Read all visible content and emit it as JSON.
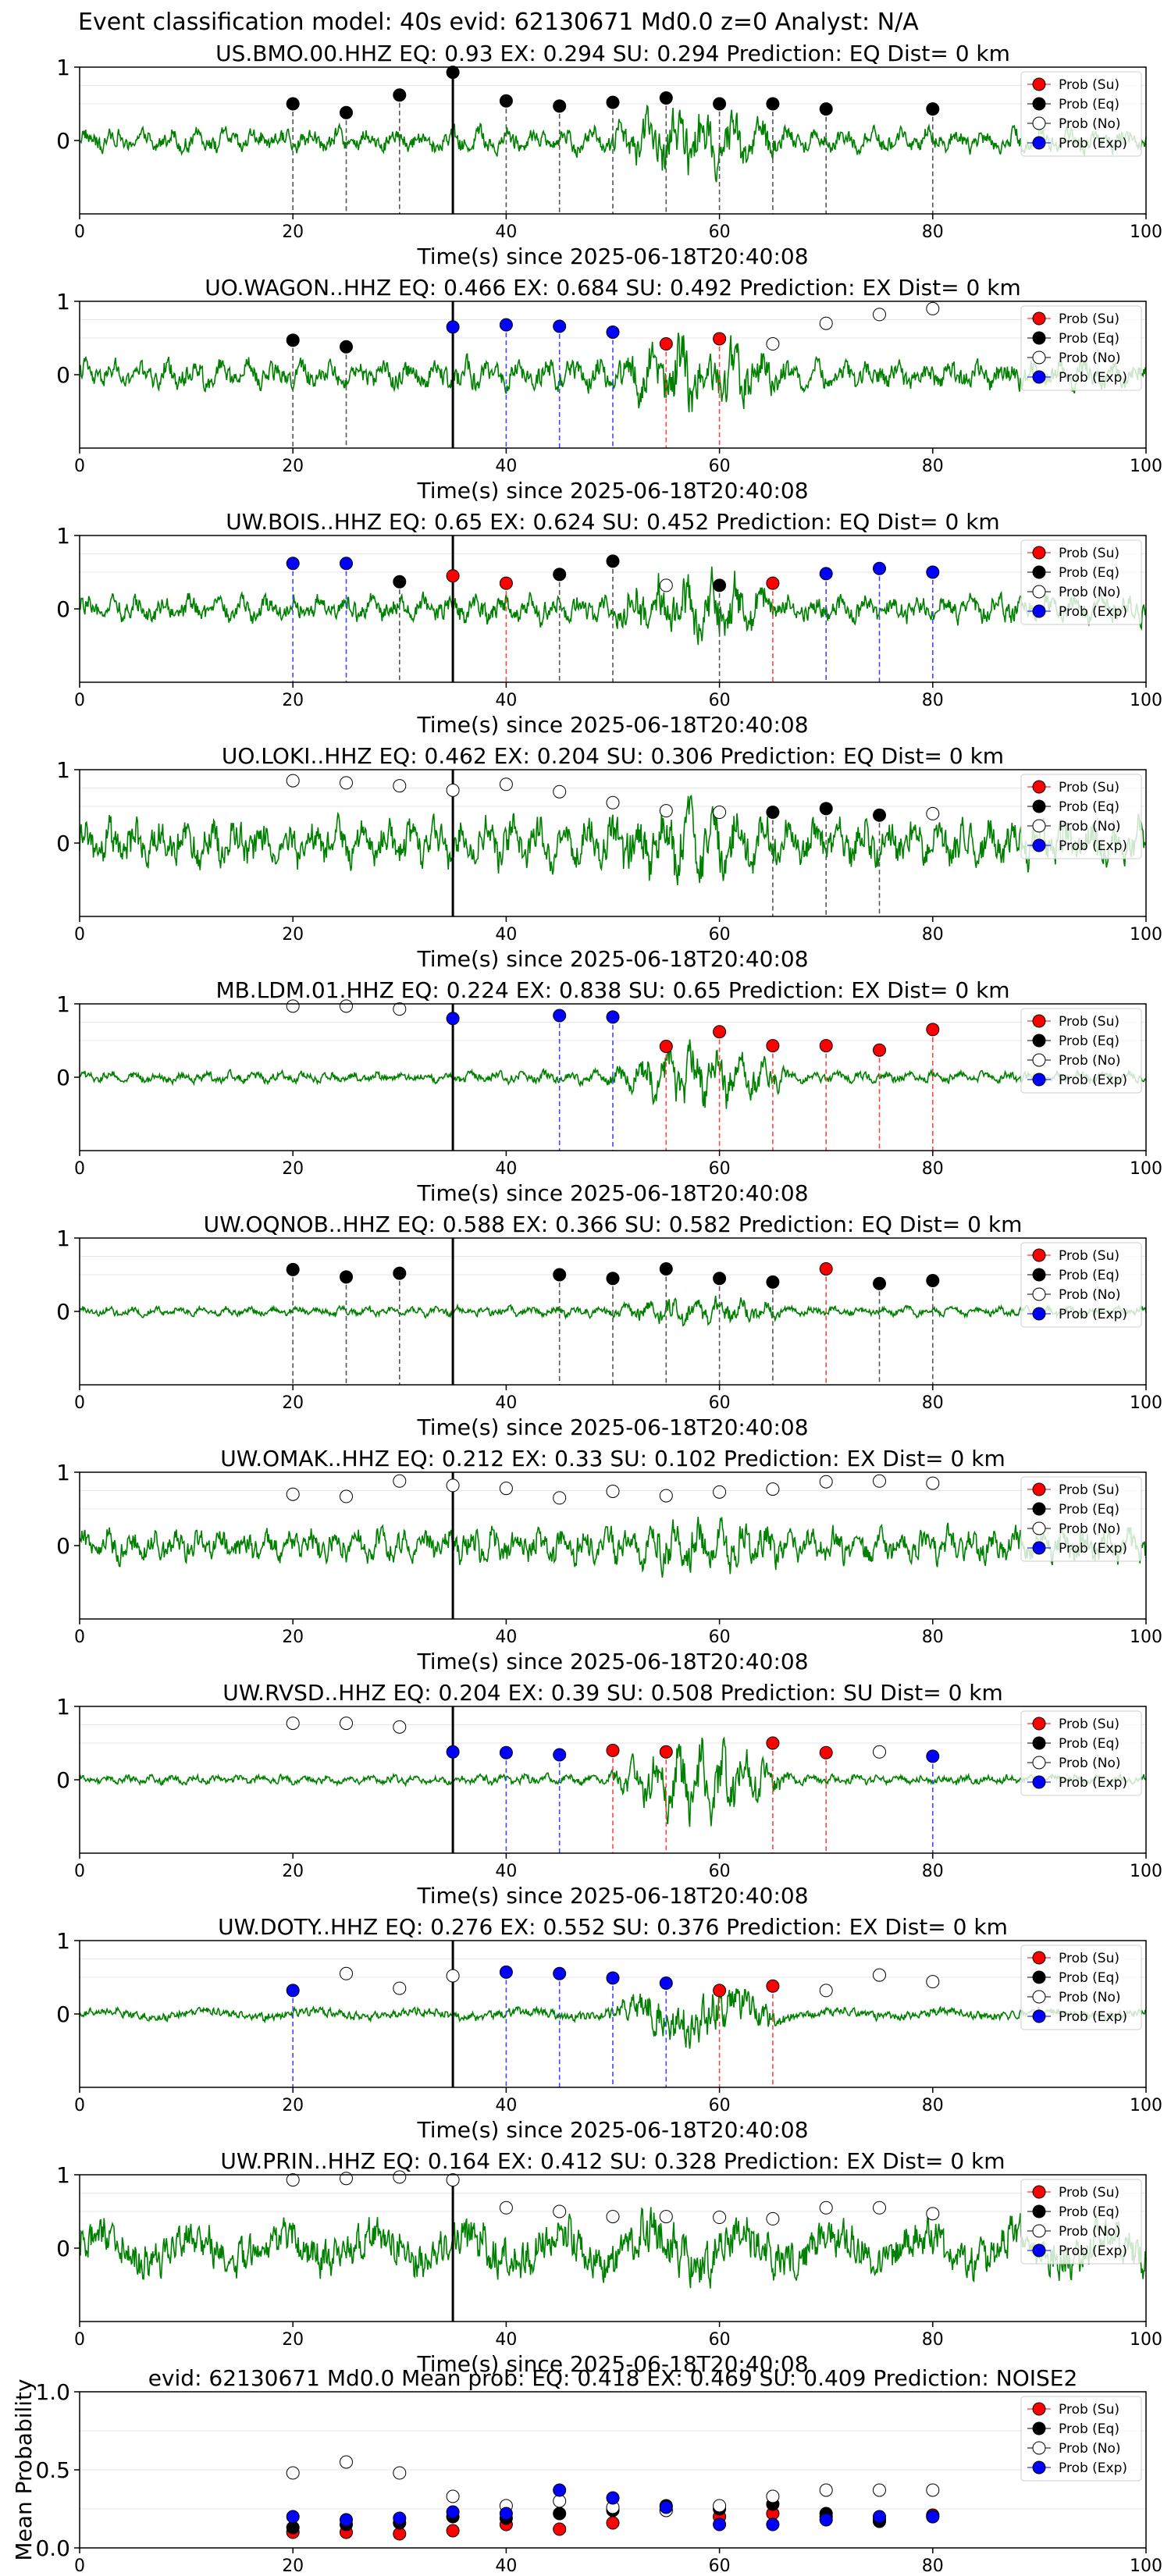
{
  "suptitle": "Event classification model: 40s evid: 62130671 Md0.0 z=0 Analyst: N/A",
  "legend_labels": [
    "Prob (Su)",
    "Prob (Eq)",
    "Prob (No)",
    "Prob (Exp)"
  ],
  "colors": {
    "su": "#ff0000",
    "eq": "#000000",
    "no": "#ffffff",
    "exp": "#0000ff",
    "waveform": "#008000"
  },
  "chart_data": [
    {
      "type": "line",
      "station": "US.BMO.00.HHZ",
      "title": "US.BMO.00.HHZ   EQ: 0.93  EX: 0.294  SU: 0.294   Prediction: EQ    Dist= 0 km",
      "xlabel": "Time(s) since 2025-06-18T20:40:08",
      "xlim": [
        0,
        100
      ],
      "ylim": [
        -1,
        1
      ],
      "xticks": [
        0,
        20,
        40,
        60,
        80,
        100
      ],
      "yticks": [
        0,
        1
      ],
      "onset": 35,
      "noise": 0.25,
      "burst": 0.45,
      "points": [
        {
          "x": 20,
          "y": 0.5,
          "cls": "eq"
        },
        {
          "x": 25,
          "y": 0.38,
          "cls": "eq"
        },
        {
          "x": 30,
          "y": 0.62,
          "cls": "eq"
        },
        {
          "x": 35,
          "y": 0.93,
          "cls": "eq"
        },
        {
          "x": 40,
          "y": 0.54,
          "cls": "eq"
        },
        {
          "x": 45,
          "y": 0.47,
          "cls": "eq"
        },
        {
          "x": 50,
          "y": 0.52,
          "cls": "eq"
        },
        {
          "x": 55,
          "y": 0.58,
          "cls": "eq"
        },
        {
          "x": 60,
          "y": 0.5,
          "cls": "eq"
        },
        {
          "x": 65,
          "y": 0.5,
          "cls": "eq"
        },
        {
          "x": 70,
          "y": 0.43,
          "cls": "eq"
        },
        {
          "x": 80,
          "y": 0.43,
          "cls": "eq"
        }
      ]
    },
    {
      "type": "line",
      "station": "UO.WAGON..HHZ",
      "title": "UO.WAGON..HHZ   EQ: 0.466  EX: 0.684  SU: 0.492   Prediction: EX    Dist= 0 km",
      "xlabel": "Time(s) since 2025-06-18T20:40:08",
      "xlim": [
        0,
        100
      ],
      "ylim": [
        -1,
        1
      ],
      "xticks": [
        0,
        20,
        40,
        60,
        80,
        100
      ],
      "yticks": [
        0,
        1
      ],
      "onset": 35,
      "noise": 0.3,
      "burst": 0.5,
      "points": [
        {
          "x": 20,
          "y": 0.47,
          "cls": "eq"
        },
        {
          "x": 25,
          "y": 0.38,
          "cls": "eq"
        },
        {
          "x": 35,
          "y": 0.65,
          "cls": "exp"
        },
        {
          "x": 40,
          "y": 0.68,
          "cls": "exp"
        },
        {
          "x": 45,
          "y": 0.66,
          "cls": "exp"
        },
        {
          "x": 50,
          "y": 0.58,
          "cls": "exp"
        },
        {
          "x": 55,
          "y": 0.42,
          "cls": "su"
        },
        {
          "x": 60,
          "y": 0.49,
          "cls": "su"
        },
        {
          "x": 65,
          "y": 0.42,
          "cls": "no"
        },
        {
          "x": 70,
          "y": 0.7,
          "cls": "no"
        },
        {
          "x": 75,
          "y": 0.82,
          "cls": "no"
        },
        {
          "x": 80,
          "y": 0.9,
          "cls": "no"
        }
      ]
    },
    {
      "type": "line",
      "station": "UW.BOIS..HHZ",
      "title": "UW.BOIS..HHZ   EQ: 0.65  EX: 0.624  SU: 0.452   Prediction: EQ    Dist= 0 km",
      "xlabel": "Time(s) since 2025-06-18T20:40:08",
      "xlim": [
        0,
        100
      ],
      "ylim": [
        -1,
        1
      ],
      "xticks": [
        0,
        20,
        40,
        60,
        80,
        100
      ],
      "yticks": [
        0,
        1
      ],
      "onset": 35,
      "noise": 0.28,
      "burst": 0.45,
      "points": [
        {
          "x": 20,
          "y": 0.62,
          "cls": "exp"
        },
        {
          "x": 25,
          "y": 0.62,
          "cls": "exp"
        },
        {
          "x": 30,
          "y": 0.37,
          "cls": "eq"
        },
        {
          "x": 35,
          "y": 0.45,
          "cls": "su"
        },
        {
          "x": 40,
          "y": 0.35,
          "cls": "su"
        },
        {
          "x": 45,
          "y": 0.47,
          "cls": "eq"
        },
        {
          "x": 50,
          "y": 0.65,
          "cls": "eq"
        },
        {
          "x": 55,
          "y": 0.32,
          "cls": "no"
        },
        {
          "x": 60,
          "y": 0.32,
          "cls": "eq"
        },
        {
          "x": 65,
          "y": 0.35,
          "cls": "su"
        },
        {
          "x": 70,
          "y": 0.48,
          "cls": "exp"
        },
        {
          "x": 75,
          "y": 0.55,
          "cls": "exp"
        },
        {
          "x": 80,
          "y": 0.5,
          "cls": "exp"
        }
      ]
    },
    {
      "type": "line",
      "station": "UO.LOKI..HHZ",
      "title": "UO.LOKI..HHZ   EQ: 0.462  EX: 0.204  SU: 0.306   Prediction: EQ    Dist= 0 km",
      "xlabel": "Time(s) since 2025-06-18T20:40:08",
      "xlim": [
        0,
        100
      ],
      "ylim": [
        -1,
        1
      ],
      "xticks": [
        0,
        20,
        40,
        60,
        80,
        100
      ],
      "yticks": [
        0,
        1
      ],
      "onset": 35,
      "noise": 0.5,
      "burst": 0.3,
      "points": [
        {
          "x": 20,
          "y": 0.85,
          "cls": "no"
        },
        {
          "x": 25,
          "y": 0.82,
          "cls": "no"
        },
        {
          "x": 30,
          "y": 0.78,
          "cls": "no"
        },
        {
          "x": 35,
          "y": 0.72,
          "cls": "no"
        },
        {
          "x": 40,
          "y": 0.8,
          "cls": "no"
        },
        {
          "x": 45,
          "y": 0.7,
          "cls": "no"
        },
        {
          "x": 50,
          "y": 0.55,
          "cls": "no"
        },
        {
          "x": 55,
          "y": 0.44,
          "cls": "no"
        },
        {
          "x": 60,
          "y": 0.42,
          "cls": "no"
        },
        {
          "x": 65,
          "y": 0.42,
          "cls": "eq"
        },
        {
          "x": 70,
          "y": 0.47,
          "cls": "eq"
        },
        {
          "x": 75,
          "y": 0.38,
          "cls": "eq"
        },
        {
          "x": 80,
          "y": 0.4,
          "cls": "no"
        }
      ]
    },
    {
      "type": "line",
      "station": "MB.LDM.01.HHZ",
      "title": "MB.LDM.01.HHZ   EQ: 0.224  EX: 0.838  SU: 0.65   Prediction: EX    Dist= 0 km",
      "xlabel": "Time(s) since 2025-06-18T20:40:08",
      "xlim": [
        0,
        100
      ],
      "ylim": [
        -1,
        1
      ],
      "xticks": [
        0,
        20,
        40,
        60,
        80,
        100
      ],
      "yticks": [
        0,
        1
      ],
      "onset": 35,
      "noise": 0.12,
      "burst": 0.55,
      "points": [
        {
          "x": 20,
          "y": 0.97,
          "cls": "no"
        },
        {
          "x": 25,
          "y": 0.97,
          "cls": "no"
        },
        {
          "x": 30,
          "y": 0.93,
          "cls": "no"
        },
        {
          "x": 35,
          "y": 0.8,
          "cls": "exp"
        },
        {
          "x": 45,
          "y": 0.84,
          "cls": "exp"
        },
        {
          "x": 50,
          "y": 0.82,
          "cls": "exp"
        },
        {
          "x": 55,
          "y": 0.42,
          "cls": "su"
        },
        {
          "x": 60,
          "y": 0.62,
          "cls": "su"
        },
        {
          "x": 65,
          "y": 0.43,
          "cls": "su"
        },
        {
          "x": 70,
          "y": 0.43,
          "cls": "su"
        },
        {
          "x": 75,
          "y": 0.37,
          "cls": "su"
        },
        {
          "x": 80,
          "y": 0.65,
          "cls": "su"
        }
      ]
    },
    {
      "type": "line",
      "station": "UW.OQNOB..HHZ",
      "title": "UW.OQNOB..HHZ   EQ: 0.588  EX: 0.366  SU: 0.582   Prediction: EQ    Dist= 0 km",
      "xlabel": "Time(s) since 2025-06-18T20:40:08",
      "xlim": [
        0,
        100
      ],
      "ylim": [
        -1,
        1
      ],
      "xticks": [
        0,
        20,
        40,
        60,
        80,
        100
      ],
      "yticks": [
        0,
        1
      ],
      "onset": 35,
      "noise": 0.1,
      "burst": 0.2,
      "points": [
        {
          "x": 20,
          "y": 0.57,
          "cls": "eq"
        },
        {
          "x": 25,
          "y": 0.47,
          "cls": "eq"
        },
        {
          "x": 30,
          "y": 0.52,
          "cls": "eq"
        },
        {
          "x": 45,
          "y": 0.5,
          "cls": "eq"
        },
        {
          "x": 50,
          "y": 0.45,
          "cls": "eq"
        },
        {
          "x": 55,
          "y": 0.58,
          "cls": "eq"
        },
        {
          "x": 60,
          "y": 0.45,
          "cls": "eq"
        },
        {
          "x": 65,
          "y": 0.4,
          "cls": "eq"
        },
        {
          "x": 70,
          "y": 0.58,
          "cls": "su"
        },
        {
          "x": 75,
          "y": 0.38,
          "cls": "eq"
        },
        {
          "x": 80,
          "y": 0.42,
          "cls": "eq"
        }
      ]
    },
    {
      "type": "line",
      "station": "UW.OMAK..HHZ",
      "title": "UW.OMAK..HHZ   EQ: 0.212  EX: 0.33  SU: 0.102   Prediction: EX    Dist= 0 km",
      "xlabel": "Time(s) since 2025-06-18T20:40:08",
      "xlim": [
        0,
        100
      ],
      "ylim": [
        -1,
        1
      ],
      "xticks": [
        0,
        20,
        40,
        60,
        80,
        100
      ],
      "yticks": [
        0,
        1
      ],
      "onset": 35,
      "noise": 0.35,
      "burst": 0.2,
      "points": [
        {
          "x": 20,
          "y": 0.7,
          "cls": "no"
        },
        {
          "x": 25,
          "y": 0.67,
          "cls": "no"
        },
        {
          "x": 30,
          "y": 0.88,
          "cls": "no"
        },
        {
          "x": 35,
          "y": 0.82,
          "cls": "no"
        },
        {
          "x": 40,
          "y": 0.78,
          "cls": "no"
        },
        {
          "x": 45,
          "y": 0.65,
          "cls": "no"
        },
        {
          "x": 50,
          "y": 0.74,
          "cls": "no"
        },
        {
          "x": 55,
          "y": 0.68,
          "cls": "no"
        },
        {
          "x": 60,
          "y": 0.73,
          "cls": "no"
        },
        {
          "x": 65,
          "y": 0.77,
          "cls": "no"
        },
        {
          "x": 70,
          "y": 0.87,
          "cls": "no"
        },
        {
          "x": 75,
          "y": 0.88,
          "cls": "no"
        },
        {
          "x": 80,
          "y": 0.85,
          "cls": "no"
        }
      ]
    },
    {
      "type": "line",
      "station": "UW.RVSD..HHZ",
      "title": "UW.RVSD..HHZ   EQ: 0.204  EX: 0.39  SU: 0.508   Prediction: SU    Dist= 0 km",
      "xlabel": "Time(s) since 2025-06-18T20:40:08",
      "xlim": [
        0,
        100
      ],
      "ylim": [
        -1,
        1
      ],
      "xticks": [
        0,
        20,
        40,
        60,
        80,
        100
      ],
      "yticks": [
        0,
        1
      ],
      "onset": 35,
      "noise": 0.1,
      "burst": 0.7,
      "points": [
        {
          "x": 20,
          "y": 0.77,
          "cls": "no"
        },
        {
          "x": 25,
          "y": 0.77,
          "cls": "no"
        },
        {
          "x": 30,
          "y": 0.72,
          "cls": "no"
        },
        {
          "x": 35,
          "y": 0.38,
          "cls": "exp"
        },
        {
          "x": 40,
          "y": 0.37,
          "cls": "exp"
        },
        {
          "x": 45,
          "y": 0.34,
          "cls": "exp"
        },
        {
          "x": 50,
          "y": 0.4,
          "cls": "su"
        },
        {
          "x": 55,
          "y": 0.38,
          "cls": "su"
        },
        {
          "x": 65,
          "y": 0.5,
          "cls": "su"
        },
        {
          "x": 70,
          "y": 0.37,
          "cls": "su"
        },
        {
          "x": 75,
          "y": 0.38,
          "cls": "no"
        },
        {
          "x": 80,
          "y": 0.32,
          "cls": "exp"
        }
      ]
    },
    {
      "type": "line",
      "station": "UW.DOTY..HHZ",
      "title": "UW.DOTY..HHZ   EQ: 0.276  EX: 0.552  SU: 0.376   Prediction: EX    Dist= 0 km",
      "xlabel": "Time(s) since 2025-06-18T20:40:08",
      "xlim": [
        0,
        100
      ],
      "ylim": [
        -1,
        1
      ],
      "xticks": [
        0,
        20,
        40,
        60,
        80,
        100
      ],
      "yticks": [
        0,
        1
      ],
      "onset": 35,
      "noise": 0.12,
      "burst": 0.55,
      "points": [
        {
          "x": 20,
          "y": 0.32,
          "cls": "exp"
        },
        {
          "x": 25,
          "y": 0.55,
          "cls": "no"
        },
        {
          "x": 30,
          "y": 0.35,
          "cls": "no"
        },
        {
          "x": 35,
          "y": 0.52,
          "cls": "no"
        },
        {
          "x": 40,
          "y": 0.57,
          "cls": "exp"
        },
        {
          "x": 45,
          "y": 0.55,
          "cls": "exp"
        },
        {
          "x": 50,
          "y": 0.49,
          "cls": "exp"
        },
        {
          "x": 55,
          "y": 0.42,
          "cls": "exp"
        },
        {
          "x": 60,
          "y": 0.32,
          "cls": "su"
        },
        {
          "x": 65,
          "y": 0.38,
          "cls": "su"
        },
        {
          "x": 70,
          "y": 0.32,
          "cls": "no"
        },
        {
          "x": 75,
          "y": 0.53,
          "cls": "no"
        },
        {
          "x": 80,
          "y": 0.44,
          "cls": "no"
        }
      ]
    },
    {
      "type": "line",
      "station": "UW.PRIN..HHZ",
      "title": "UW.PRIN..HHZ   EQ: 0.164  EX: 0.412  SU: 0.328   Prediction: EX    Dist= 0 km",
      "xlabel": "Time(s) since 2025-06-18T20:40:08",
      "xlim": [
        0,
        100
      ],
      "ylim": [
        -1,
        1
      ],
      "xticks": [
        0,
        20,
        40,
        60,
        80,
        100
      ],
      "yticks": [
        0,
        1
      ],
      "onset": 35,
      "noise": 0.55,
      "burst": 0.15,
      "points": [
        {
          "x": 20,
          "y": 0.93,
          "cls": "no"
        },
        {
          "x": 25,
          "y": 0.95,
          "cls": "no"
        },
        {
          "x": 30,
          "y": 0.97,
          "cls": "no"
        },
        {
          "x": 35,
          "y": 0.93,
          "cls": "no"
        },
        {
          "x": 40,
          "y": 0.55,
          "cls": "no"
        },
        {
          "x": 45,
          "y": 0.5,
          "cls": "no"
        },
        {
          "x": 50,
          "y": 0.43,
          "cls": "no"
        },
        {
          "x": 55,
          "y": 0.43,
          "cls": "no"
        },
        {
          "x": 60,
          "y": 0.42,
          "cls": "no"
        },
        {
          "x": 65,
          "y": 0.4,
          "cls": "no"
        },
        {
          "x": 70,
          "y": 0.55,
          "cls": "no"
        },
        {
          "x": 75,
          "y": 0.55,
          "cls": "no"
        },
        {
          "x": 80,
          "y": 0.47,
          "cls": "no"
        }
      ]
    },
    {
      "type": "scatter",
      "title": "evid: 62130671  Md0.0   Mean prob:   EQ: 0.418  EX: 0.469  SU: 0.409   Prediction: NOISE2",
      "ylabel": "Mean Probability",
      "xlim": [
        0,
        100
      ],
      "ylim": [
        0,
        1
      ],
      "xticks": [
        0,
        20,
        40,
        60,
        80,
        100
      ],
      "yticks": [
        0.0,
        0.5,
        1.0
      ],
      "series": [
        {
          "name": "Prob (Su)",
          "cls": "su",
          "x": [
            20,
            25,
            30,
            35,
            40,
            45,
            50,
            55,
            60,
            65,
            70,
            75,
            80
          ],
          "y": [
            0.1,
            0.1,
            0.09,
            0.11,
            0.15,
            0.12,
            0.16,
            0.24,
            0.2,
            0.22,
            0.2,
            0.18,
            0.21
          ]
        },
        {
          "name": "Prob (Eq)",
          "cls": "eq",
          "x": [
            20,
            25,
            30,
            35,
            40,
            45,
            50,
            55,
            60,
            65,
            70,
            75,
            80
          ],
          "y": [
            0.13,
            0.15,
            0.16,
            0.2,
            0.19,
            0.22,
            0.24,
            0.27,
            0.25,
            0.28,
            0.22,
            0.17,
            0.2
          ]
        },
        {
          "name": "Prob (No)",
          "cls": "no",
          "x": [
            20,
            25,
            30,
            35,
            40,
            45,
            50,
            55,
            60,
            65,
            70,
            75,
            80
          ],
          "y": [
            0.48,
            0.55,
            0.48,
            0.33,
            0.27,
            0.3,
            0.26,
            0.24,
            0.27,
            0.33,
            0.37,
            0.37,
            0.37
          ]
        },
        {
          "name": "Prob (Exp)",
          "cls": "exp",
          "x": [
            20,
            25,
            30,
            35,
            40,
            45,
            50,
            55,
            60,
            65,
            70,
            75,
            80
          ],
          "y": [
            0.2,
            0.18,
            0.19,
            0.23,
            0.22,
            0.37,
            0.32,
            0.26,
            0.15,
            0.15,
            0.18,
            0.2,
            0.2
          ]
        }
      ]
    }
  ]
}
